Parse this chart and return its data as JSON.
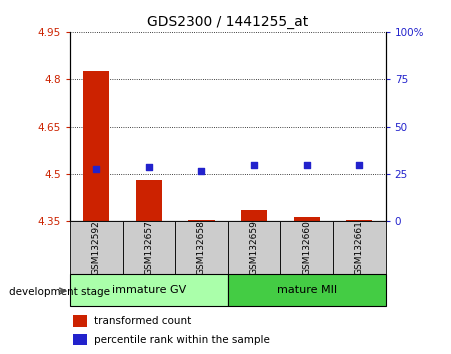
{
  "title": "GDS2300 / 1441255_at",
  "samples": [
    "GSM132592",
    "GSM132657",
    "GSM132658",
    "GSM132659",
    "GSM132660",
    "GSM132661"
  ],
  "transformed_counts": [
    4.825,
    4.48,
    4.355,
    4.385,
    4.362,
    4.355
  ],
  "percentile_ranks": [
    27.5,
    28.5,
    26.5,
    29.5,
    29.5,
    29.5
  ],
  "baseline": 4.35,
  "ylim_left": [
    4.35,
    4.95
  ],
  "ylim_right": [
    0,
    100
  ],
  "yticks_left": [
    4.35,
    4.5,
    4.65,
    4.8,
    4.95
  ],
  "yticks_right": [
    0,
    25,
    50,
    75,
    100
  ],
  "ytick_labels_left": [
    "4.35",
    "4.5",
    "4.65",
    "4.8",
    "4.95"
  ],
  "ytick_labels_right": [
    "0",
    "25",
    "50",
    "75",
    "100%"
  ],
  "groups": [
    {
      "label": "immature GV",
      "indices": [
        0,
        1,
        2
      ],
      "color": "#aaffaa"
    },
    {
      "label": "mature MII",
      "indices": [
        3,
        4,
        5
      ],
      "color": "#44cc44"
    }
  ],
  "group_label": "development stage",
  "bar_color": "#cc2200",
  "dot_color": "#2222cc",
  "bar_width": 0.5,
  "tick_color_left": "#cc2200",
  "tick_color_right": "#2222cc",
  "legend_items": [
    {
      "color": "#cc2200",
      "label": "transformed count"
    },
    {
      "color": "#2222cc",
      "label": "percentile rank within the sample"
    }
  ],
  "sample_box_color": "#cccccc",
  "fig_bg": "#ffffff"
}
